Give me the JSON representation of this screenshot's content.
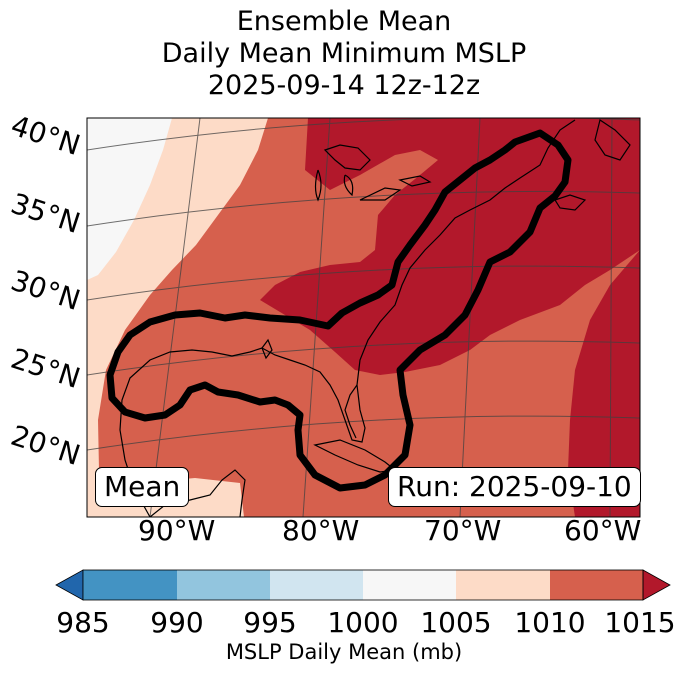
{
  "title": {
    "line1": "Ensemble Mean",
    "line2": "Daily Mean Minimum MSLP",
    "line3": "2025-09-14 12z-12z"
  },
  "latitude_labels": [
    "40°N",
    "35°N",
    "30°N",
    "25°N",
    "20°N"
  ],
  "longitude_labels": [
    "90°W",
    "80°W",
    "70°W",
    "60°W"
  ],
  "badges": {
    "left": "Mean",
    "right": "Run: 2025-09-10"
  },
  "colorbar": {
    "ticks": [
      "985",
      "990",
      "995",
      "1000",
      "1005",
      "1010",
      "1015"
    ],
    "label": "MSLP Daily Mean (mb)",
    "colors": [
      "#2166ac",
      "#4393c3",
      "#92c5de",
      "#d1e5f0",
      "#f7f7f7",
      "#fddbc7",
      "#d6604d",
      "#b2182b"
    ]
  },
  "map": {
    "field_colors": {
      "c1000_1005": "#f7f7f7",
      "c1005_1010": "#fddbc7",
      "c1010_1015": "#d6604d",
      "c1015_plus": "#b2182b"
    },
    "outline_color": "#000000"
  }
}
